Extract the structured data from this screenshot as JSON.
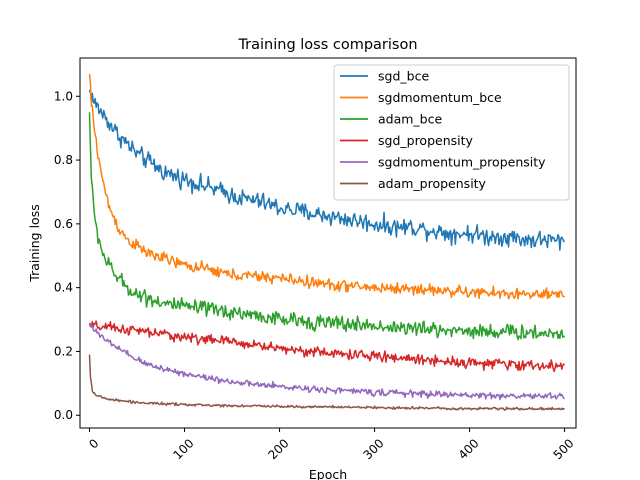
{
  "chart_data": {
    "type": "line",
    "title": "Training loss comparison",
    "xlabel": "Epoch",
    "ylabel": "Training loss",
    "xlim": [
      -10,
      512
    ],
    "ylim": [
      -0.04,
      1.12
    ],
    "xticks": [
      0,
      100,
      200,
      300,
      400,
      500
    ],
    "yticks": [
      0.0,
      0.2,
      0.4,
      0.6,
      0.8,
      1.0
    ],
    "xtick_rotation": 45,
    "grid": false,
    "legend_position": "top-right",
    "series": [
      {
        "name": "sgd_bce",
        "color": "#1f77b4",
        "x": [
          0,
          5,
          10,
          20,
          30,
          40,
          50,
          60,
          70,
          80,
          90,
          100,
          120,
          140,
          160,
          180,
          200,
          220,
          240,
          260,
          280,
          300,
          320,
          340,
          360,
          380,
          400,
          420,
          440,
          460,
          480,
          500
        ],
        "y": [
          1.02,
          0.98,
          0.96,
          0.92,
          0.88,
          0.85,
          0.82,
          0.8,
          0.78,
          0.76,
          0.75,
          0.74,
          0.72,
          0.7,
          0.68,
          0.67,
          0.65,
          0.64,
          0.63,
          0.62,
          0.61,
          0.6,
          0.59,
          0.59,
          0.58,
          0.57,
          0.57,
          0.56,
          0.56,
          0.55,
          0.55,
          0.545
        ],
        "noise": 0.014
      },
      {
        "name": "sgdmomentum_bce",
        "color": "#ff7f0e",
        "x": [
          0,
          2,
          5,
          10,
          15,
          20,
          30,
          40,
          50,
          60,
          70,
          80,
          100,
          120,
          150,
          200,
          250,
          300,
          350,
          400,
          450,
          500
        ],
        "y": [
          1.07,
          0.98,
          0.9,
          0.8,
          0.72,
          0.66,
          0.59,
          0.55,
          0.53,
          0.51,
          0.5,
          0.49,
          0.47,
          0.46,
          0.44,
          0.43,
          0.41,
          0.4,
          0.395,
          0.385,
          0.38,
          0.375
        ],
        "noise": 0.009
      },
      {
        "name": "adam_bce",
        "color": "#2ca02c",
        "x": [
          0,
          2,
          5,
          10,
          15,
          20,
          30,
          40,
          50,
          60,
          80,
          100,
          130,
          160,
          200,
          250,
          300,
          350,
          400,
          450,
          500
        ],
        "y": [
          0.95,
          0.75,
          0.62,
          0.55,
          0.5,
          0.47,
          0.43,
          0.4,
          0.38,
          0.37,
          0.35,
          0.34,
          0.33,
          0.32,
          0.3,
          0.29,
          0.28,
          0.27,
          0.265,
          0.26,
          0.255
        ],
        "noise": 0.012
      },
      {
        "name": "sgd_propensity",
        "color": "#d62728",
        "x": [
          0,
          20,
          50,
          100,
          150,
          200,
          250,
          300,
          350,
          400,
          450,
          500
        ],
        "y": [
          0.28,
          0.275,
          0.265,
          0.245,
          0.23,
          0.21,
          0.195,
          0.185,
          0.175,
          0.165,
          0.158,
          0.152
        ],
        "noise": 0.008
      },
      {
        "name": "sgdmomentum_propensity",
        "color": "#9467bd",
        "x": [
          0,
          5,
          10,
          20,
          30,
          40,
          50,
          60,
          80,
          100,
          130,
          160,
          200,
          250,
          300,
          350,
          400,
          450,
          500
        ],
        "y": [
          0.29,
          0.27,
          0.25,
          0.23,
          0.21,
          0.19,
          0.175,
          0.16,
          0.145,
          0.13,
          0.115,
          0.1,
          0.09,
          0.08,
          0.072,
          0.067,
          0.063,
          0.06,
          0.06
        ],
        "noise": 0.005
      },
      {
        "name": "adam_propensity",
        "color": "#8c564b",
        "x": [
          0,
          1,
          3,
          6,
          10,
          20,
          40,
          60,
          100,
          150,
          200,
          300,
          400,
          500
        ],
        "y": [
          0.19,
          0.12,
          0.08,
          0.065,
          0.058,
          0.05,
          0.043,
          0.038,
          0.033,
          0.03,
          0.028,
          0.024,
          0.021,
          0.02
        ],
        "noise": 0.002
      }
    ]
  }
}
